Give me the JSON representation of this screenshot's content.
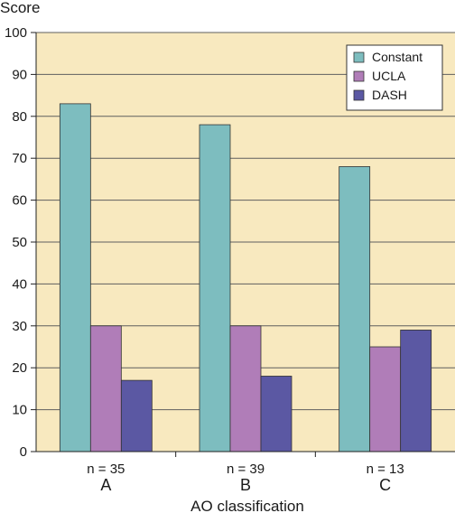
{
  "chart_data": {
    "type": "bar",
    "ylabel": "Score",
    "xlabel": "AO classification",
    "ylim": [
      0,
      100
    ],
    "yticks": [
      0,
      10,
      20,
      30,
      40,
      50,
      60,
      70,
      80,
      90,
      100
    ],
    "categories": [
      "A",
      "B",
      "C"
    ],
    "category_sublabels": [
      "n = 35",
      "n = 39",
      "n = 13"
    ],
    "series": [
      {
        "name": "Constant",
        "color": "#7dbdbf",
        "values": [
          83,
          78,
          68
        ]
      },
      {
        "name": "UCLA",
        "color": "#b07db8",
        "values": [
          30,
          30,
          25
        ]
      },
      {
        "name": "DASH",
        "color": "#5b58a3",
        "values": [
          17,
          18,
          29
        ]
      }
    ],
    "plot_background": "#f8e9bf",
    "grid": true,
    "legend_position": "top-right"
  }
}
